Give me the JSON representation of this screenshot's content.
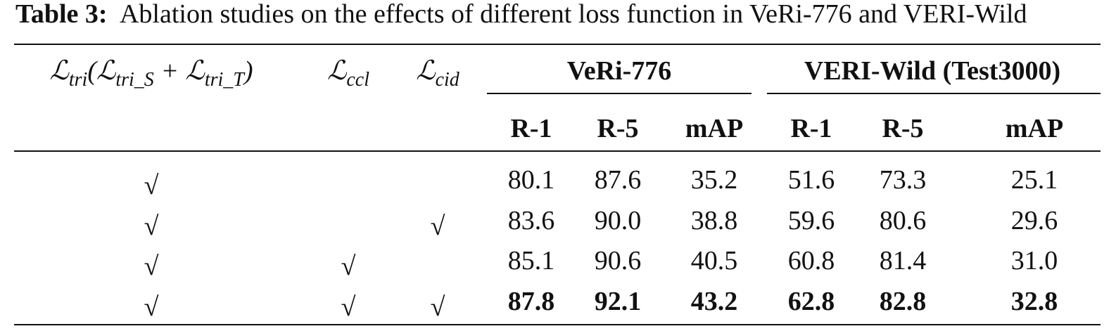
{
  "caption": {
    "label": "Table 3:",
    "text": "Ablation studies on the effects of different loss function in VeRi-776 and VERI-Wild"
  },
  "table": {
    "loss_headers": [
      [
        {
          "text": "ℒ"
        },
        {
          "sub": "tri"
        },
        {
          "text": "(ℒ"
        },
        {
          "sub": "tri_S"
        },
        {
          "text": " + ℒ"
        },
        {
          "sub": "tri_T"
        },
        {
          "text": ")"
        }
      ],
      [
        {
          "text": "ℒ"
        },
        {
          "sub": "ccl"
        }
      ],
      [
        {
          "text": "ℒ"
        },
        {
          "sub": "cid"
        }
      ]
    ],
    "groups": [
      "VeRi-776",
      "VERI-Wild (Test3000)"
    ],
    "metrics": [
      "R-1",
      "R-5",
      "mAP",
      "R-1",
      "R-5",
      "mAP"
    ],
    "rows": [
      {
        "checks": [
          "√",
          null,
          null
        ],
        "values": [
          "80.1",
          "87.6",
          "35.2",
          "51.6",
          "73.3",
          "25.1"
        ],
        "bold": false
      },
      {
        "checks": [
          "√",
          null,
          "√"
        ],
        "values": [
          "83.6",
          "90.0",
          "38.8",
          "59.6",
          "80.6",
          "29.6"
        ],
        "bold": false
      },
      {
        "checks": [
          "√",
          "√",
          null
        ],
        "values": [
          "85.1",
          "90.6",
          "40.5",
          "60.8",
          "81.4",
          "31.0"
        ],
        "bold": false
      },
      {
        "checks": [
          "√",
          "√",
          "√"
        ],
        "values": [
          "87.8",
          "92.1",
          "43.2",
          "62.8",
          "82.8",
          "32.8"
        ],
        "bold": true
      }
    ]
  }
}
